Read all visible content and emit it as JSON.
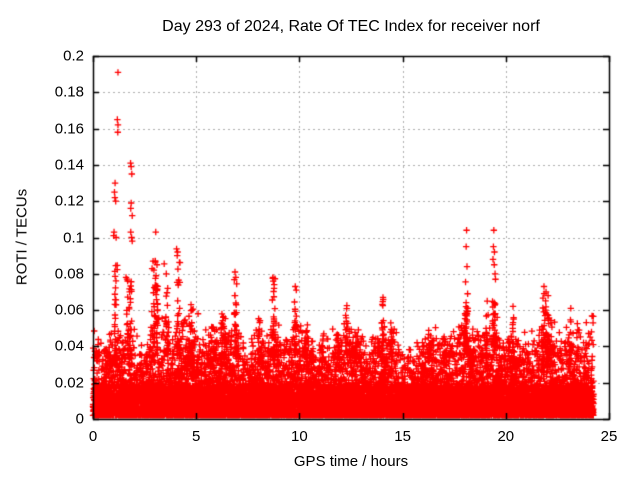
{
  "chart_data": {
    "type": "scatter",
    "title": "Day 293 of 2024, Rate Of TEC Index for receiver norf",
    "xlabel": "GPS time / hours",
    "ylabel": "ROTI / TECUs",
    "xlim": [
      0,
      25
    ],
    "ylim": [
      0,
      0.2
    ],
    "x_ticks": [
      0,
      5,
      10,
      15,
      20,
      25
    ],
    "y_ticks": [
      0,
      0.02,
      0.04,
      0.06,
      0.08,
      0.1,
      0.12,
      0.14,
      0.16,
      0.18,
      0.2
    ],
    "grid": {
      "style": "dashed",
      "color": "#b0b0b0"
    },
    "marker": {
      "shape": "plus",
      "color": "#ff0000",
      "size": 7
    },
    "border_color": "#000000",
    "background_color": "#ffffff",
    "legend": "none",
    "x_data_range": [
      0,
      24.25
    ],
    "noise_floor": 0.002,
    "core_band_max": 0.02,
    "seed": 2024293,
    "baseline_points": 14000,
    "envelope_keypoints": [
      [
        0,
        0.048
      ],
      [
        0.3,
        0.043
      ],
      [
        0.7,
        0.04
      ],
      [
        1.0,
        0.05
      ],
      [
        1.3,
        0.046
      ],
      [
        1.6,
        0.044
      ],
      [
        1.9,
        0.047
      ],
      [
        2.2,
        0.04
      ],
      [
        2.5,
        0.038
      ],
      [
        2.8,
        0.048
      ],
      [
        3.1,
        0.052
      ],
      [
        3.5,
        0.046
      ],
      [
        3.8,
        0.042
      ],
      [
        4.1,
        0.048
      ],
      [
        4.5,
        0.05
      ],
      [
        4.9,
        0.046
      ],
      [
        5.3,
        0.04
      ],
      [
        5.7,
        0.046
      ],
      [
        6.1,
        0.048
      ],
      [
        6.5,
        0.044
      ],
      [
        6.9,
        0.05
      ],
      [
        7.2,
        0.04
      ],
      [
        7.6,
        0.038
      ],
      [
        8.0,
        0.046
      ],
      [
        8.4,
        0.044
      ],
      [
        8.8,
        0.05
      ],
      [
        9.2,
        0.042
      ],
      [
        9.6,
        0.046
      ],
      [
        9.9,
        0.05
      ],
      [
        10.3,
        0.046
      ],
      [
        10.7,
        0.038
      ],
      [
        11.1,
        0.04
      ],
      [
        11.5,
        0.042
      ],
      [
        11.9,
        0.044
      ],
      [
        12.3,
        0.048
      ],
      [
        12.7,
        0.046
      ],
      [
        13.1,
        0.04
      ],
      [
        13.5,
        0.042
      ],
      [
        14.0,
        0.05
      ],
      [
        14.5,
        0.046
      ],
      [
        15.0,
        0.04
      ],
      [
        15.5,
        0.035
      ],
      [
        16.0,
        0.042
      ],
      [
        16.5,
        0.044
      ],
      [
        17.0,
        0.042
      ],
      [
        17.5,
        0.044
      ],
      [
        18.0,
        0.052
      ],
      [
        18.4,
        0.046
      ],
      [
        18.8,
        0.044
      ],
      [
        19.2,
        0.048
      ],
      [
        19.5,
        0.052
      ],
      [
        19.9,
        0.042
      ],
      [
        20.3,
        0.046
      ],
      [
        20.7,
        0.044
      ],
      [
        21.1,
        0.042
      ],
      [
        21.5,
        0.048
      ],
      [
        21.9,
        0.054
      ],
      [
        22.3,
        0.05
      ],
      [
        22.7,
        0.042
      ],
      [
        23.1,
        0.046
      ],
      [
        23.5,
        0.042
      ],
      [
        23.9,
        0.048
      ],
      [
        24.25,
        0.05
      ]
    ],
    "clusters": [
      {
        "x": 1.12,
        "w": 0.14,
        "y0": 0.03,
        "y1": 0.085,
        "n": 30
      },
      {
        "x": 1.75,
        "w": 0.25,
        "y0": 0.03,
        "y1": 0.078,
        "n": 35
      },
      {
        "x": 3.0,
        "w": 0.3,
        "y0": 0.038,
        "y1": 0.088,
        "n": 45
      },
      {
        "x": 3.6,
        "w": 0.15,
        "y0": 0.035,
        "y1": 0.072,
        "n": 20
      },
      {
        "x": 4.15,
        "w": 0.15,
        "y0": 0.035,
        "y1": 0.09,
        "n": 25
      },
      {
        "x": 4.75,
        "w": 0.22,
        "y0": 0.03,
        "y1": 0.063,
        "n": 30
      },
      {
        "x": 5.77,
        "w": 0.1,
        "y0": 0.03,
        "y1": 0.052,
        "n": 12
      },
      {
        "x": 6.3,
        "w": 0.28,
        "y0": 0.03,
        "y1": 0.058,
        "n": 30
      },
      {
        "x": 6.9,
        "w": 0.14,
        "y0": 0.035,
        "y1": 0.079,
        "n": 25
      },
      {
        "x": 8.1,
        "w": 0.18,
        "y0": 0.03,
        "y1": 0.057,
        "n": 25
      },
      {
        "x": 8.75,
        "w": 0.16,
        "y0": 0.03,
        "y1": 0.078,
        "n": 30
      },
      {
        "x": 9.8,
        "w": 0.12,
        "y0": 0.035,
        "y1": 0.073,
        "n": 25
      },
      {
        "x": 10.35,
        "w": 0.14,
        "y0": 0.03,
        "y1": 0.054,
        "n": 18
      },
      {
        "x": 11.15,
        "w": 0.06,
        "y0": 0.03,
        "y1": 0.048,
        "n": 8
      },
      {
        "x": 11.85,
        "w": 0.22,
        "y0": 0.03,
        "y1": 0.049,
        "n": 20
      },
      {
        "x": 12.3,
        "w": 0.12,
        "y0": 0.03,
        "y1": 0.0625,
        "n": 18
      },
      {
        "x": 12.7,
        "w": 0.16,
        "y0": 0.03,
        "y1": 0.051,
        "n": 15
      },
      {
        "x": 14.05,
        "w": 0.14,
        "y0": 0.03,
        "y1": 0.067,
        "n": 25
      },
      {
        "x": 14.45,
        "w": 0.14,
        "y0": 0.03,
        "y1": 0.053,
        "n": 15
      },
      {
        "x": 16.3,
        "w": 0.18,
        "y0": 0.03,
        "y1": 0.049,
        "n": 15
      },
      {
        "x": 17.0,
        "w": 0.14,
        "y0": 0.03,
        "y1": 0.046,
        "n": 12
      },
      {
        "x": 18.1,
        "w": 0.16,
        "y0": 0.035,
        "y1": 0.066,
        "n": 35
      },
      {
        "x": 19.1,
        "w": 0.12,
        "y0": 0.03,
        "y1": 0.06,
        "n": 15
      },
      {
        "x": 19.42,
        "w": 0.14,
        "y0": 0.035,
        "y1": 0.065,
        "n": 30
      },
      {
        "x": 20.35,
        "w": 0.1,
        "y0": 0.03,
        "y1": 0.058,
        "n": 12
      },
      {
        "x": 21.9,
        "w": 0.4,
        "y0": 0.03,
        "y1": 0.07,
        "n": 45
      },
      {
        "x": 23.15,
        "w": 0.12,
        "y0": 0.03,
        "y1": 0.056,
        "n": 12
      },
      {
        "x": 23.5,
        "w": 0.12,
        "y0": 0.03,
        "y1": 0.054,
        "n": 10
      }
    ],
    "outliers": [
      [
        1.21,
        0.191
      ],
      [
        1.18,
        0.165
      ],
      [
        1.21,
        0.162
      ],
      [
        1.2,
        0.158
      ],
      [
        1.07,
        0.13
      ],
      [
        1.04,
        0.125
      ],
      [
        1.06,
        0.122
      ],
      [
        1.1,
        0.12
      ],
      [
        1.02,
        0.103
      ],
      [
        1.0,
        0.101
      ],
      [
        1.12,
        0.1
      ],
      [
        1.82,
        0.141
      ],
      [
        1.85,
        0.139
      ],
      [
        1.88,
        0.135
      ],
      [
        1.85,
        0.119
      ],
      [
        1.83,
        0.116
      ],
      [
        1.9,
        0.112
      ],
      [
        1.83,
        0.103
      ],
      [
        1.87,
        0.1
      ],
      [
        1.9,
        0.098
      ],
      [
        1.6,
        0.078
      ],
      [
        3.04,
        0.103
      ],
      [
        3.02,
        0.087
      ],
      [
        3.1,
        0.085
      ],
      [
        2.95,
        0.082
      ],
      [
        3.45,
        0.0855
      ],
      [
        3.55,
        0.08
      ],
      [
        3.62,
        0.072
      ],
      [
        4.05,
        0.0937
      ],
      [
        4.1,
        0.092
      ],
      [
        4.08,
        0.09
      ],
      [
        6.88,
        0.081
      ],
      [
        6.92,
        0.078
      ],
      [
        8.72,
        0.078
      ],
      [
        8.78,
        0.074
      ],
      [
        9.8,
        0.073
      ],
      [
        9.85,
        0.071
      ],
      [
        12.3,
        0.0625
      ],
      [
        14.05,
        0.067
      ],
      [
        18.1,
        0.104
      ],
      [
        18.08,
        0.095
      ],
      [
        18.12,
        0.084
      ],
      [
        18.05,
        0.0755
      ],
      [
        18.15,
        0.069
      ],
      [
        19.42,
        0.104
      ],
      [
        19.4,
        0.095
      ],
      [
        19.45,
        0.092
      ],
      [
        19.38,
        0.088
      ],
      [
        19.44,
        0.085
      ],
      [
        19.48,
        0.08
      ],
      [
        19.5,
        0.077
      ],
      [
        19.1,
        0.065
      ],
      [
        20.35,
        0.062
      ],
      [
        21.85,
        0.073
      ],
      [
        21.95,
        0.07
      ],
      [
        22.05,
        0.068
      ],
      [
        23.15,
        0.061
      ],
      [
        4.75,
        0.063
      ],
      [
        5.09,
        0.058
      ]
    ]
  }
}
